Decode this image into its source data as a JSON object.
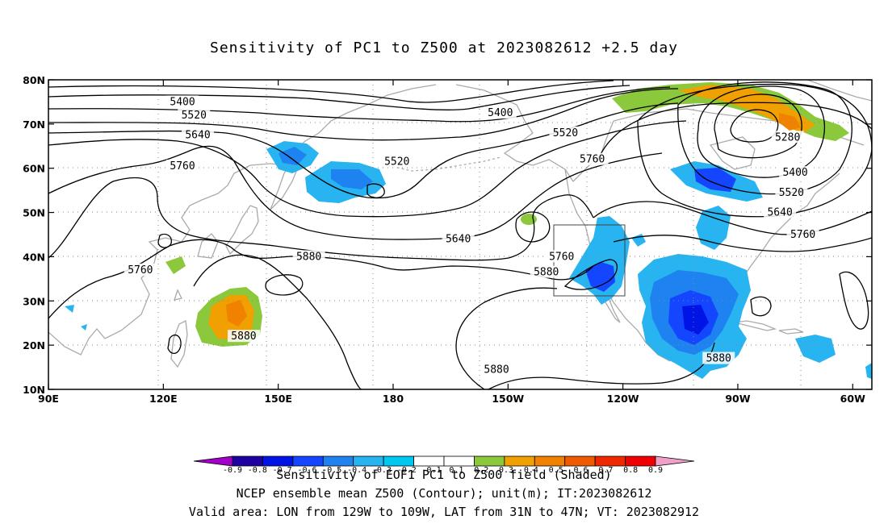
{
  "title": "Sensitivity of PC1 to Z500 at 2023082612 +2.5 day",
  "chart_data": {
    "type": "contour_map",
    "title": "Sensitivity of PC1 to Z500 at 2023082612 +2.5 day",
    "projection": "cylindrical equidistant",
    "lon_range": [
      90,
      305
    ],
    "lat_range": [
      10,
      80
    ],
    "grid": true,
    "x_ticks": [
      {
        "lon": 90,
        "label": "90E"
      },
      {
        "lon": 120,
        "label": "120E"
      },
      {
        "lon": 150,
        "label": "150E"
      },
      {
        "lon": 180,
        "label": "180"
      },
      {
        "lon": 210,
        "label": "150W"
      },
      {
        "lon": 240,
        "label": "120W"
      },
      {
        "lon": 270,
        "label": "90W"
      },
      {
        "lon": 300,
        "label": "60W"
      }
    ],
    "y_ticks": [
      {
        "lat": 10,
        "label": "10N"
      },
      {
        "lat": 20,
        "label": "20N"
      },
      {
        "lat": 30,
        "label": "30N"
      },
      {
        "lat": 40,
        "label": "40N"
      },
      {
        "lat": 50,
        "label": "50N"
      },
      {
        "lat": 60,
        "label": "60N"
      },
      {
        "lat": 70,
        "label": "70N"
      },
      {
        "lat": 80,
        "label": "80N"
      }
    ],
    "contour_variable": "Z500 ensemble mean (m)",
    "contour_labels": [
      {
        "value": "5400",
        "lon": 125,
        "lat": 75
      },
      {
        "value": "5400",
        "lon": 208,
        "lat": 72.5
      },
      {
        "value": "5520",
        "lon": 128,
        "lat": 72
      },
      {
        "value": "5520",
        "lon": 181,
        "lat": 61.5
      },
      {
        "value": "5520",
        "lon": 225,
        "lat": 68
      },
      {
        "value": "5640",
        "lon": 129,
        "lat": 67.5
      },
      {
        "value": "5640",
        "lon": 197,
        "lat": 44
      },
      {
        "value": "5760",
        "lon": 125,
        "lat": 60.5
      },
      {
        "value": "5760",
        "lon": 232,
        "lat": 62
      },
      {
        "value": "5760",
        "lon": 114,
        "lat": 37
      },
      {
        "value": "5760",
        "lon": 224,
        "lat": 40
      },
      {
        "value": "5880",
        "lon": 158,
        "lat": 40
      },
      {
        "value": "5880",
        "lon": 220,
        "lat": 36.5
      },
      {
        "value": "5880",
        "lon": 141,
        "lat": 22
      },
      {
        "value": "5880",
        "lon": 207,
        "lat": 14.5
      },
      {
        "value": "5880",
        "lon": 265,
        "lat": 17
      },
      {
        "value": "5280",
        "lon": 283,
        "lat": 67
      },
      {
        "value": "5400",
        "lon": 285,
        "lat": 59
      },
      {
        "value": "5520",
        "lon": 284,
        "lat": 54.5
      },
      {
        "value": "5640",
        "lon": 281,
        "lat": 50
      },
      {
        "value": "5760",
        "lon": 287,
        "lat": 45
      }
    ],
    "shaded_variable": "Sensitivity of EOF1 PC1 to Z500 field",
    "colorbar": {
      "levels": [
        -0.9,
        -0.8,
        -0.7,
        -0.6,
        -0.5,
        -0.4,
        -0.3,
        -0.2,
        -0.1,
        0.1,
        0.2,
        0.3,
        0.4,
        0.5,
        0.6,
        0.7,
        0.8,
        0.9
      ],
      "colors": [
        "#a000c8",
        "#1e00a0",
        "#0014e6",
        "#1446ff",
        "#1e82f0",
        "#28b4f0",
        "#00c8f0",
        "#ffffff",
        "#ffffff",
        "#8cc83c",
        "#f0a000",
        "#f08200",
        "#f05a00",
        "#f02800",
        "#f00000",
        "#f0a0c8"
      ],
      "tick_labels": [
        "-0.9",
        "-0.8",
        "-0.7",
        "-0.6",
        "-0.5",
        "-0.4",
        "-0.3",
        "-0.2",
        "-0.1",
        "0.1",
        "0.2",
        "0.3",
        "0.4",
        "0.5",
        "0.6",
        "0.7",
        "0.8",
        "0.9"
      ]
    },
    "valid_area": {
      "lon_min": -129,
      "lon_max": -109,
      "lat_min": 31,
      "lat_max": 47
    }
  },
  "footer": {
    "line1": "Sensitivity of EOF1 PC1 to Z500 field (Shaded)",
    "line2": "NCEP ensemble mean Z500 (Contour); unit(m); IT:2023082612",
    "line3": "Valid area: LON from 129W to 109W, LAT from 31N to 47N; VT: 2023082912"
  }
}
